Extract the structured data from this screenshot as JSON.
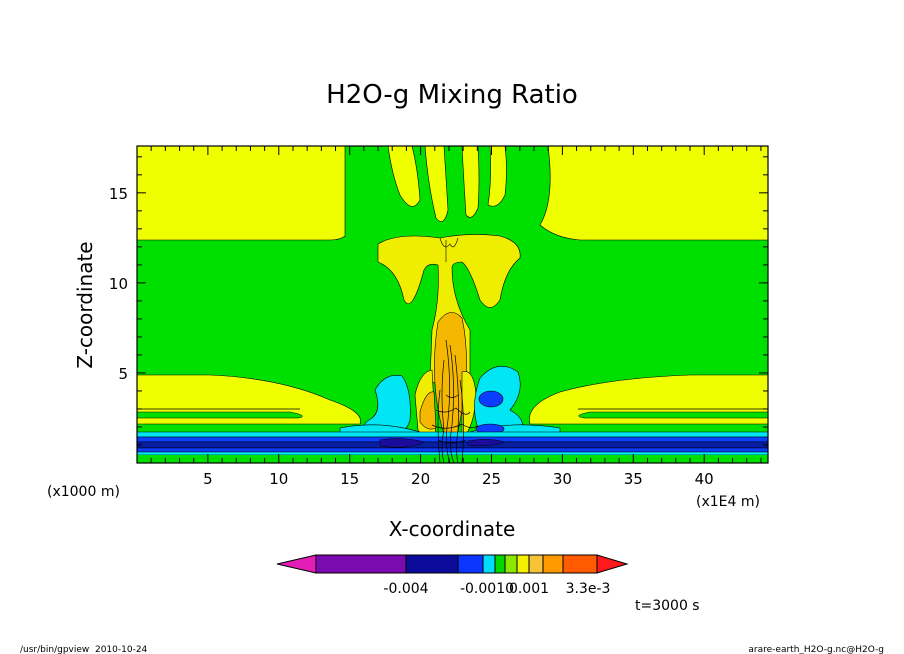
{
  "chart_data": {
    "type": "heatmap",
    "title": "H2O-g Mixing Ratio",
    "xlabel": "X-coordinate",
    "ylabel": "Z-coordinate",
    "x_unit": "(x1E4 m)",
    "y_unit": "(x1000 m)",
    "xlim": [
      0,
      44.5
    ],
    "ylim": [
      0,
      17.6
    ],
    "x_ticks": [
      5,
      10,
      15,
      20,
      25,
      30,
      35,
      40
    ],
    "y_ticks": [
      5,
      10,
      15
    ],
    "time_label": "t=3000 s",
    "colorbar": {
      "colors": [
        "#e21cb5",
        "#7a0bb0",
        "#0c0c9a",
        "#0a36ff",
        "#00dcff",
        "#00d800",
        "#8ce800",
        "#f0f000",
        "#f5c23a",
        "#ff9a00",
        "#ff5a00",
        "#ff1b1b"
      ],
      "labels": [
        "-0.004",
        "-0.0010",
        "0.001",
        "3.3e-3"
      ]
    },
    "fields": {
      "background": "#00e000",
      "light_yellow": "#f0ff00",
      "yellow": "#f0ee00",
      "orange": "#f5b800",
      "cyan": "#00e6f5",
      "blue": "#0b3dff",
      "navy": "#071ea0",
      "purple": "#1c0c9c"
    }
  },
  "footer": {
    "left": "/usr/bin/gpview  2010-10-24",
    "right": "arare-earth_H2O-g.nc@H2O-g"
  }
}
